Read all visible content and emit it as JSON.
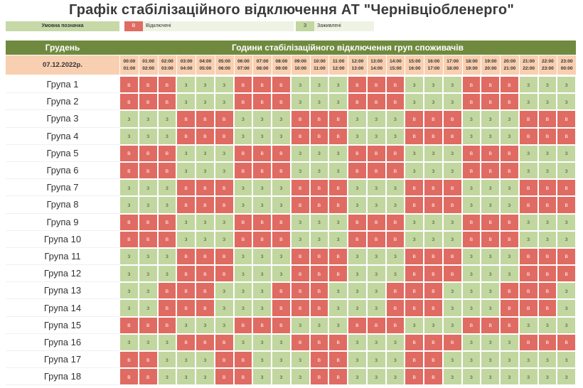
{
  "title": "Графік стабілізаційного відключення АТ \"Чернівціобленерго\"",
  "legend": {
    "label": "Умовна позначка",
    "off_code": "В",
    "off_text": "Відключені",
    "on_code": "З",
    "on_text": "Заживлені"
  },
  "header": {
    "month": "Грудень",
    "title": "Години стабілізаційного відключення груп споживачів",
    "date": "07.12.2022р."
  },
  "colors": {
    "off": "#e06b62",
    "on": "#c2d7a0",
    "header": "#6f8a3e",
    "date_bg": "#f8cfb0"
  },
  "hours": [
    {
      "from": "00:00",
      "to": "01:00"
    },
    {
      "from": "01:00",
      "to": "02:00"
    },
    {
      "from": "02:00",
      "to": "03:00"
    },
    {
      "from": "03:00",
      "to": "04:00"
    },
    {
      "from": "04:00",
      "to": "05:00"
    },
    {
      "from": "05:00",
      "to": "06:00"
    },
    {
      "from": "06:00",
      "to": "07:00"
    },
    {
      "from": "07:00",
      "to": "08:00"
    },
    {
      "from": "08:00",
      "to": "09:00"
    },
    {
      "from": "09:00",
      "to": "10:00"
    },
    {
      "from": "10:00",
      "to": "11:00"
    },
    {
      "from": "11:00",
      "to": "12:00"
    },
    {
      "from": "12:00",
      "to": "13:00"
    },
    {
      "from": "13:00",
      "to": "14:00"
    },
    {
      "from": "14:00",
      "to": "15:00"
    },
    {
      "from": "15:00",
      "to": "16:00"
    },
    {
      "from": "16:00",
      "to": "17:00"
    },
    {
      "from": "17:00",
      "to": "18:00"
    },
    {
      "from": "18:00",
      "to": "19:00"
    },
    {
      "from": "19:00",
      "to": "20:00"
    },
    {
      "from": "20:00",
      "to": "21:00"
    },
    {
      "from": "21:00",
      "to": "22:00"
    },
    {
      "from": "22:00",
      "to": "23:00"
    },
    {
      "from": "23:00",
      "to": "00:00"
    }
  ],
  "groups": [
    {
      "name": "Група 1",
      "slots": [
        "В",
        "В",
        "В",
        "З",
        "З",
        "З",
        "В",
        "В",
        "В",
        "З",
        "З",
        "З",
        "В",
        "В",
        "В",
        "З",
        "З",
        "З",
        "В",
        "В",
        "В",
        "З",
        "З",
        "З"
      ]
    },
    {
      "name": "Група 2",
      "slots": [
        "В",
        "В",
        "В",
        "З",
        "З",
        "З",
        "В",
        "В",
        "В",
        "З",
        "З",
        "З",
        "В",
        "В",
        "В",
        "З",
        "З",
        "З",
        "В",
        "В",
        "В",
        "З",
        "З",
        "З"
      ]
    },
    {
      "name": "Група 3",
      "slots": [
        "З",
        "З",
        "З",
        "В",
        "В",
        "В",
        "З",
        "З",
        "З",
        "В",
        "В",
        "В",
        "З",
        "З",
        "З",
        "В",
        "В",
        "В",
        "З",
        "З",
        "З",
        "В",
        "В",
        "В"
      ]
    },
    {
      "name": "Група 4",
      "slots": [
        "З",
        "З",
        "З",
        "В",
        "В",
        "В",
        "З",
        "З",
        "З",
        "В",
        "В",
        "В",
        "З",
        "З",
        "З",
        "В",
        "В",
        "В",
        "З",
        "З",
        "З",
        "В",
        "В",
        "В"
      ]
    },
    {
      "name": "Група 5",
      "slots": [
        "В",
        "В",
        "В",
        "З",
        "З",
        "З",
        "В",
        "В",
        "В",
        "З",
        "З",
        "З",
        "В",
        "В",
        "В",
        "З",
        "З",
        "З",
        "В",
        "В",
        "В",
        "З",
        "З",
        "З"
      ]
    },
    {
      "name": "Група 6",
      "slots": [
        "В",
        "В",
        "В",
        "З",
        "З",
        "З",
        "В",
        "В",
        "В",
        "З",
        "З",
        "З",
        "В",
        "В",
        "В",
        "З",
        "З",
        "З",
        "В",
        "В",
        "В",
        "З",
        "З",
        "З"
      ]
    },
    {
      "name": "Група 7",
      "slots": [
        "З",
        "З",
        "З",
        "В",
        "В",
        "В",
        "З",
        "З",
        "З",
        "В",
        "В",
        "В",
        "З",
        "З",
        "З",
        "В",
        "В",
        "В",
        "З",
        "З",
        "З",
        "В",
        "В",
        "В"
      ]
    },
    {
      "name": "Група 8",
      "slots": [
        "З",
        "З",
        "З",
        "В",
        "В",
        "В",
        "З",
        "З",
        "З",
        "В",
        "В",
        "В",
        "З",
        "З",
        "З",
        "В",
        "В",
        "В",
        "З",
        "З",
        "З",
        "В",
        "В",
        "В"
      ]
    },
    {
      "name": "Група 9",
      "slots": [
        "В",
        "В",
        "В",
        "З",
        "З",
        "З",
        "В",
        "В",
        "В",
        "З",
        "З",
        "З",
        "В",
        "В",
        "В",
        "З",
        "З",
        "З",
        "В",
        "В",
        "В",
        "З",
        "З",
        "З"
      ]
    },
    {
      "name": "Група 10",
      "slots": [
        "В",
        "В",
        "В",
        "З",
        "З",
        "З",
        "В",
        "В",
        "В",
        "З",
        "З",
        "З",
        "В",
        "В",
        "В",
        "З",
        "З",
        "З",
        "В",
        "В",
        "В",
        "З",
        "З",
        "З"
      ]
    },
    {
      "name": "Група 11",
      "slots": [
        "З",
        "З",
        "З",
        "В",
        "В",
        "В",
        "З",
        "З",
        "З",
        "В",
        "В",
        "В",
        "З",
        "З",
        "З",
        "В",
        "В",
        "В",
        "З",
        "З",
        "З",
        "В",
        "В",
        "В"
      ]
    },
    {
      "name": "Група 12",
      "slots": [
        "З",
        "З",
        "З",
        "В",
        "В",
        "В",
        "З",
        "З",
        "З",
        "В",
        "В",
        "В",
        "З",
        "З",
        "З",
        "В",
        "В",
        "В",
        "З",
        "З",
        "З",
        "В",
        "В",
        "В"
      ]
    },
    {
      "name": "Група 13",
      "slots": [
        "З",
        "З",
        "В",
        "В",
        "В",
        "З",
        "З",
        "З",
        "В",
        "В",
        "В",
        "З",
        "З",
        "З",
        "В",
        "В",
        "В",
        "З",
        "З",
        "З",
        "В",
        "В",
        "В",
        "З"
      ]
    },
    {
      "name": "Група 14",
      "slots": [
        "З",
        "З",
        "В",
        "В",
        "В",
        "З",
        "З",
        "З",
        "В",
        "В",
        "В",
        "З",
        "З",
        "З",
        "В",
        "В",
        "В",
        "З",
        "З",
        "З",
        "В",
        "В",
        "В",
        "З"
      ]
    },
    {
      "name": "Група 15",
      "slots": [
        "В",
        "В",
        "В",
        "З",
        "З",
        "З",
        "В",
        "В",
        "В",
        "З",
        "З",
        "З",
        "В",
        "В",
        "В",
        "З",
        "З",
        "З",
        "В",
        "В",
        "В",
        "З",
        "З",
        "З"
      ]
    },
    {
      "name": "Група 16",
      "slots": [
        "З",
        "З",
        "З",
        "В",
        "В",
        "В",
        "З",
        "З",
        "З",
        "В",
        "В",
        "В",
        "З",
        "З",
        "З",
        "В",
        "В",
        "В",
        "З",
        "З",
        "З",
        "В",
        "В",
        "В"
      ]
    },
    {
      "name": "Група 17",
      "slots": [
        "В",
        "В",
        "З",
        "З",
        "З",
        "В",
        "В",
        "З",
        "З",
        "З",
        "В",
        "В",
        "З",
        "З",
        "З",
        "В",
        "В",
        "З",
        "З",
        "З",
        "З",
        "З",
        "З",
        "З"
      ]
    },
    {
      "name": "Група 18",
      "slots": [
        "В",
        "В",
        "З",
        "З",
        "З",
        "В",
        "В",
        "З",
        "З",
        "З",
        "В",
        "В",
        "З",
        "З",
        "З",
        "В",
        "В",
        "З",
        "З",
        "З",
        "З",
        "З",
        "З",
        "З"
      ]
    }
  ]
}
